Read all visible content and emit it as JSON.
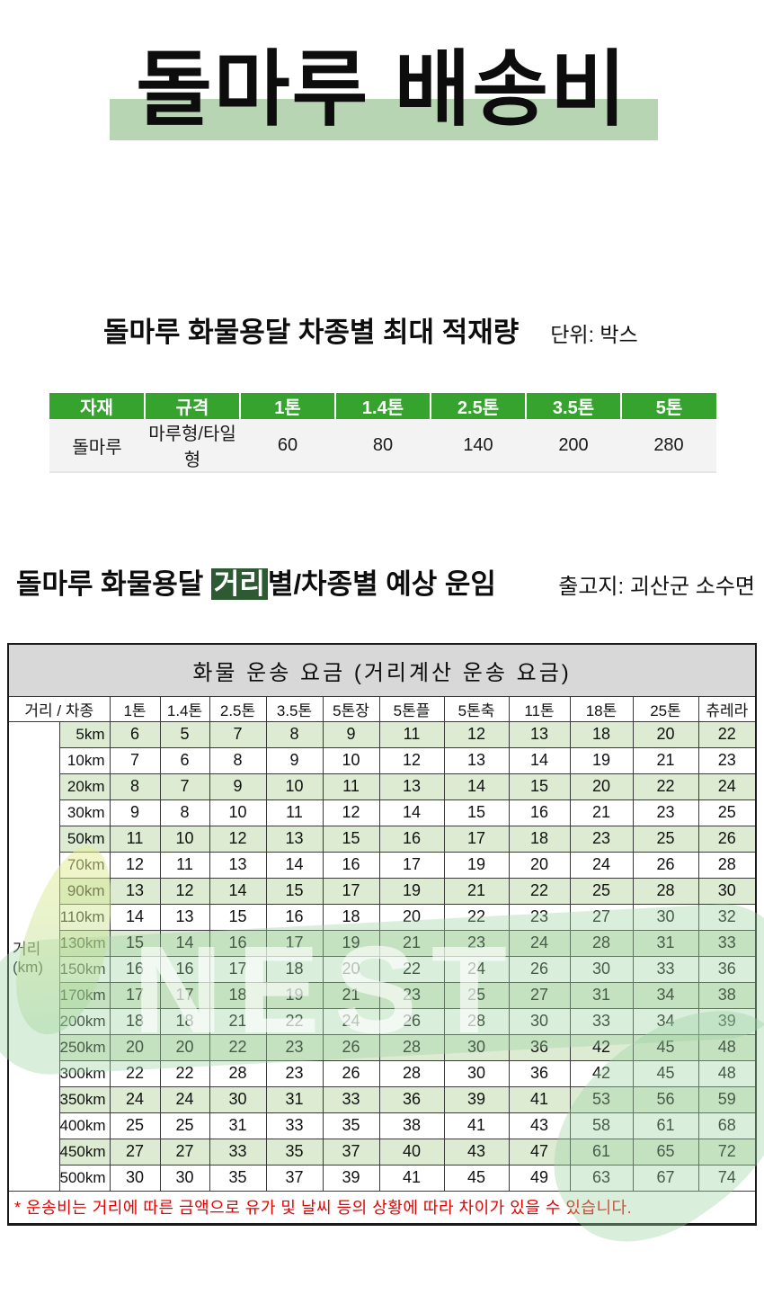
{
  "colors": {
    "header_green": "#36a32f",
    "stripe_green": "#dcebd2",
    "title_band_green": "#b7d5b2",
    "badge_dark_green": "#2e5a33",
    "table_title_gray": "#d8d8d8",
    "note_red": "#e60000"
  },
  "main_title": "돌마루 배송비",
  "capacity_section": {
    "title": "돌마루 화물용달 차종별 최대 적재량",
    "unit_label": "단위: 박스",
    "table": {
      "headers": [
        "자재",
        "규격",
        "1톤",
        "1.4톤",
        "2.5톤",
        "3.5톤",
        "5톤"
      ],
      "rows": [
        [
          "돌마루",
          "마루형/타일형",
          "60",
          "80",
          "140",
          "200",
          "280"
        ]
      ]
    }
  },
  "fare_section": {
    "title_prefix": "돌마루 화물용달 ",
    "title_highlight": "거리",
    "title_suffix": "별/차종별 예상 운임",
    "origin_label": "출고지: 괴산군 소수면",
    "table": {
      "title": "화물 운송 요금 (거리계산 운송 요금)",
      "corner_header": "거리 / 차종",
      "row_group_label_line1": "거리",
      "row_group_label_line2": "(km)",
      "vehicle_headers": [
        "1톤",
        "1.4톤",
        "2.5톤",
        "3.5톤",
        "5톤장",
        "5톤플",
        "5톤축",
        "11톤",
        "18톤",
        "25톤",
        "츄레라"
      ],
      "rows": [
        {
          "distance": "5km",
          "values": [
            6,
            5,
            7,
            8,
            9,
            11,
            12,
            13,
            18,
            20,
            22
          ]
        },
        {
          "distance": "10km",
          "values": [
            7,
            6,
            8,
            9,
            10,
            12,
            13,
            14,
            19,
            21,
            23
          ]
        },
        {
          "distance": "20km",
          "values": [
            8,
            7,
            9,
            10,
            11,
            13,
            14,
            15,
            20,
            22,
            24
          ]
        },
        {
          "distance": "30km",
          "values": [
            9,
            8,
            10,
            11,
            12,
            14,
            15,
            16,
            21,
            23,
            25
          ]
        },
        {
          "distance": "50km",
          "values": [
            11,
            10,
            12,
            13,
            15,
            16,
            17,
            18,
            23,
            25,
            26
          ]
        },
        {
          "distance": "70km",
          "values": [
            12,
            11,
            13,
            14,
            16,
            17,
            19,
            20,
            24,
            26,
            28
          ]
        },
        {
          "distance": "90km",
          "values": [
            13,
            12,
            14,
            15,
            17,
            19,
            21,
            22,
            25,
            28,
            30
          ]
        },
        {
          "distance": "110km",
          "values": [
            14,
            13,
            15,
            16,
            18,
            20,
            22,
            23,
            27,
            30,
            32
          ]
        },
        {
          "distance": "130km",
          "values": [
            15,
            14,
            16,
            17,
            19,
            21,
            23,
            24,
            28,
            31,
            33
          ]
        },
        {
          "distance": "150km",
          "values": [
            16,
            16,
            17,
            18,
            20,
            22,
            24,
            26,
            30,
            33,
            36
          ]
        },
        {
          "distance": "170km",
          "values": [
            17,
            17,
            18,
            19,
            21,
            23,
            25,
            27,
            31,
            34,
            38
          ]
        },
        {
          "distance": "200km",
          "values": [
            18,
            18,
            21,
            22,
            24,
            26,
            28,
            30,
            33,
            34,
            39
          ]
        },
        {
          "distance": "250km",
          "values": [
            20,
            20,
            22,
            23,
            26,
            28,
            30,
            36,
            42,
            45,
            48
          ]
        },
        {
          "distance": "300km",
          "values": [
            22,
            22,
            28,
            23,
            26,
            28,
            30,
            36,
            42,
            45,
            48
          ]
        },
        {
          "distance": "350km",
          "values": [
            24,
            24,
            30,
            31,
            33,
            36,
            39,
            41,
            53,
            56,
            59
          ]
        },
        {
          "distance": "400km",
          "values": [
            25,
            25,
            31,
            33,
            35,
            38,
            41,
            43,
            58,
            61,
            68
          ]
        },
        {
          "distance": "450km",
          "values": [
            27,
            27,
            33,
            35,
            37,
            40,
            43,
            47,
            61,
            65,
            72
          ]
        },
        {
          "distance": "500km",
          "values": [
            30,
            30,
            35,
            37,
            39,
            41,
            45,
            49,
            63,
            67,
            74
          ]
        }
      ],
      "note": "* 운송비는 거리에 따른 금액으로 유가 및 날씨 등의 상황에 따라 차이가 있을 수 있습니다."
    }
  },
  "watermark": {
    "text": "NEST"
  }
}
